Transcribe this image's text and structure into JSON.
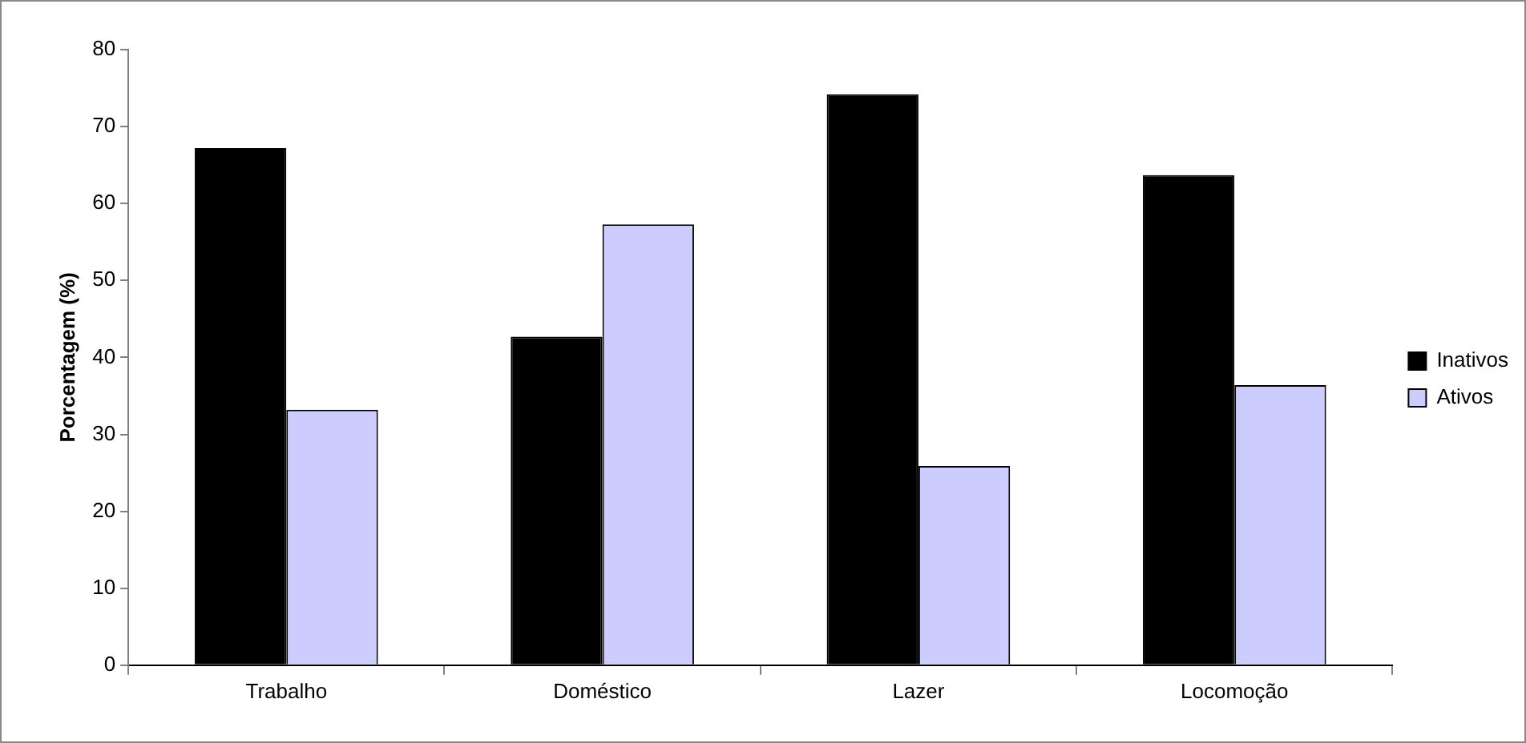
{
  "chart_data": {
    "type": "bar",
    "ylabel": "Porcentagem (%)",
    "categories": [
      "Trabalho",
      "Doméstico",
      "Lazer",
      "Locomoção"
    ],
    "series": [
      {
        "name": "Inativos",
        "color": "#000000",
        "values": [
          67.2,
          42.7,
          74.2,
          63.7
        ]
      },
      {
        "name": "Ativos",
        "color": "#ccccff",
        "values": [
          33.2,
          57.3,
          25.9,
          36.4
        ]
      }
    ],
    "ylim": [
      0,
      80
    ],
    "yticks": [
      0,
      10,
      20,
      30,
      40,
      50,
      60,
      70,
      80
    ],
    "grid": false,
    "legend": "right"
  }
}
